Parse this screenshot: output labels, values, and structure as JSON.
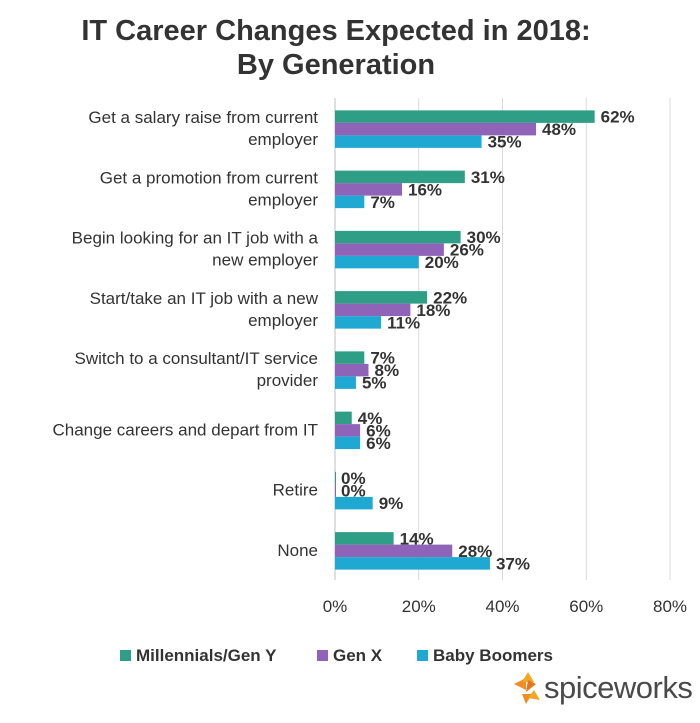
{
  "chart_data": {
    "type": "bar",
    "orientation": "horizontal",
    "title": [
      "IT Career Changes Expected in 2018:",
      "By Generation"
    ],
    "categories": [
      [
        "Get a salary raise from current",
        "employer"
      ],
      [
        "Get a promotion from current",
        "employer"
      ],
      [
        "Begin looking for an IT job with a",
        "new employer"
      ],
      [
        "Start/take an IT job with a new",
        "employer"
      ],
      [
        "Switch to a consultant/IT service",
        "provider"
      ],
      [
        "Change careers and depart from IT"
      ],
      [
        "Retire"
      ],
      [
        "None"
      ]
    ],
    "series": [
      {
        "name": "Millennials/Gen Y",
        "color": "#2e9e86",
        "values": [
          62,
          31,
          30,
          22,
          7,
          4,
          0,
          14
        ]
      },
      {
        "name": "Gen X",
        "color": "#8e63b8",
        "values": [
          48,
          16,
          26,
          18,
          8,
          6,
          0,
          28
        ]
      },
      {
        "name": "Baby Boomers",
        "color": "#1fa8d1",
        "values": [
          35,
          7,
          20,
          11,
          5,
          6,
          9,
          37
        ]
      }
    ],
    "value_suffix": "%",
    "xlim": [
      0,
      80
    ],
    "xticks": [
      "0%",
      "20%",
      "40%",
      "60%",
      "80%"
    ],
    "grid": true,
    "legend": "bottom"
  },
  "brand": {
    "name": "spiceworks",
    "icon": "spiceworks-logo-icon",
    "color": "#f28c28"
  }
}
